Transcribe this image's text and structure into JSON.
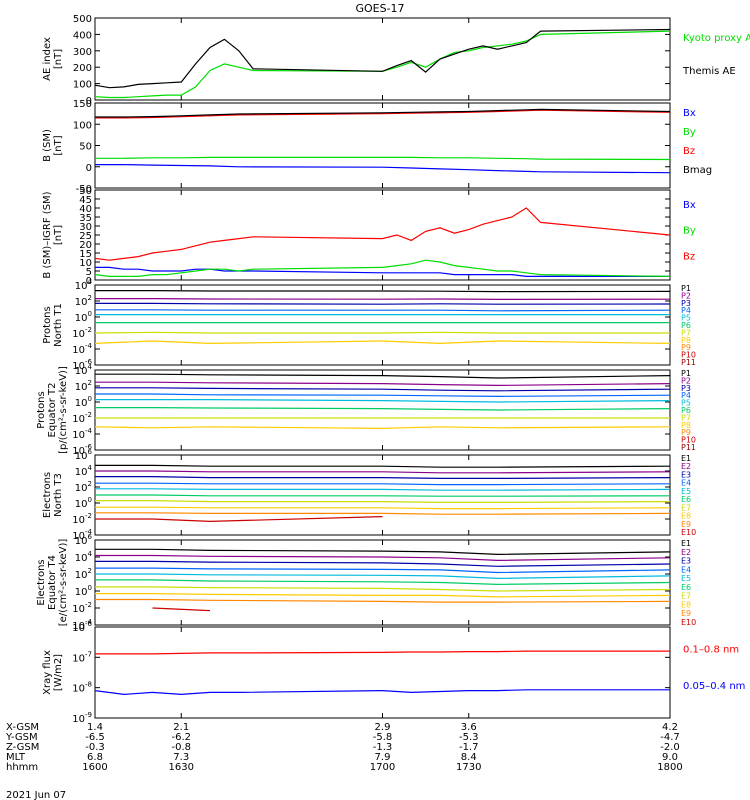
{
  "figure": {
    "title": "GOES-17",
    "date": "2021 Jun 07"
  },
  "x_axis": {
    "domain": [
      1600,
      1800
    ],
    "ticks": [
      1600,
      1630,
      1700,
      1730,
      1800
    ],
    "rows": [
      {
        "label": "X-GSM",
        "values": [
          "1.4",
          "2.1",
          "2.9",
          "3.6",
          "4.2"
        ]
      },
      {
        "label": "Y-GSM",
        "values": [
          "-6.5",
          "-6.2",
          "-5.8",
          "-5.3",
          "-4.7"
        ]
      },
      {
        "label": "Z-GSM",
        "values": [
          "-0.3",
          "-0.8",
          "-1.3",
          "-1.7",
          "-2.0"
        ]
      },
      {
        "label": "MLT",
        "values": [
          "6.8",
          "7.3",
          "7.9",
          "8.4",
          "9.0"
        ]
      },
      {
        "label": "hhmm",
        "values": [
          "1600",
          "1630",
          "1700",
          "1730",
          "1800"
        ]
      }
    ]
  },
  "chart_data": [
    {
      "type": "line",
      "ylabel": [
        "AE index",
        "[nT]"
      ],
      "ylim": [
        0,
        500
      ],
      "yticks": [
        0,
        100,
        200,
        300,
        400,
        500
      ],
      "x": [
        1600,
        1605,
        1610,
        1615,
        1620,
        1625,
        1630,
        1635,
        1640,
        1645,
        1650,
        1655,
        1700,
        1705,
        1710,
        1715,
        1720,
        1725,
        1730,
        1735,
        1740,
        1745,
        1750,
        1755,
        1800
      ],
      "series": [
        {
          "name": "Kyoto proxy AE",
          "color": "#00dd00",
          "values": [
            20,
            15,
            15,
            20,
            25,
            30,
            30,
            80,
            180,
            220,
            200,
            180,
            175,
            200,
            230,
            200,
            250,
            290,
            300,
            320,
            330,
            340,
            360,
            400,
            420
          ]
        },
        {
          "name": "Themis AE",
          "color": "#000000",
          "values": [
            90,
            75,
            80,
            95,
            100,
            105,
            110,
            220,
            320,
            370,
            300,
            190,
            175,
            210,
            240,
            170,
            250,
            280,
            310,
            330,
            310,
            330,
            350,
            420,
            430
          ]
        }
      ]
    },
    {
      "type": "line",
      "ylabel": [
        "B (SM)",
        "[nT]"
      ],
      "ylim": [
        -50,
        150
      ],
      "yticks": [
        -50,
        0,
        50,
        100,
        150
      ],
      "x": [
        1600,
        1610,
        1620,
        1630,
        1640,
        1650,
        1700,
        1710,
        1720,
        1730,
        1740,
        1750,
        1755,
        1800
      ],
      "series": [
        {
          "name": "Bx",
          "color": "#0000ff",
          "values": [
            5,
            5,
            4,
            3,
            2,
            0,
            -1,
            -3,
            -5,
            -7,
            -9,
            -11,
            -12,
            -14
          ]
        },
        {
          "name": "By",
          "color": "#00dd00",
          "values": [
            20,
            20,
            21,
            21,
            22,
            22,
            22,
            22,
            21,
            21,
            20,
            19,
            18,
            17
          ]
        },
        {
          "name": "Bz",
          "color": "#ff0000",
          "values": [
            115,
            115,
            116,
            118,
            120,
            122,
            125,
            126,
            127,
            128,
            130,
            132,
            133,
            128
          ]
        },
        {
          "name": "Bmag",
          "color": "#000000",
          "values": [
            117,
            117,
            118,
            120,
            122,
            124,
            127,
            128,
            129,
            130,
            132,
            134,
            135,
            130
          ]
        }
      ]
    },
    {
      "type": "line",
      "ylabel": [
        "B (SM)–IGRF (SM)",
        "[nT]"
      ],
      "ylim": [
        0,
        50
      ],
      "yticks": [
        0,
        5,
        10,
        15,
        20,
        25,
        30,
        35,
        40,
        45,
        50
      ],
      "x": [
        1600,
        1605,
        1610,
        1615,
        1620,
        1625,
        1630,
        1635,
        1640,
        1645,
        1650,
        1655,
        1700,
        1705,
        1710,
        1715,
        1720,
        1725,
        1730,
        1735,
        1740,
        1745,
        1750,
        1755,
        1800
      ],
      "series": [
        {
          "name": "Bx",
          "color": "#0000ff",
          "values": [
            7,
            7,
            6,
            6,
            5,
            5,
            5,
            6,
            6,
            5,
            5,
            5,
            4,
            4,
            4,
            4,
            4,
            3,
            3,
            3,
            3,
            3,
            2,
            2,
            2
          ]
        },
        {
          "name": "By",
          "color": "#00dd00",
          "values": [
            3,
            2,
            2,
            2,
            3,
            3,
            4,
            5,
            6,
            6,
            5,
            6,
            7,
            8,
            9,
            11,
            10,
            8,
            7,
            6,
            5,
            5,
            4,
            3,
            2
          ]
        },
        {
          "name": "Bz",
          "color": "#ff0000",
          "values": [
            12,
            11,
            12,
            13,
            15,
            16,
            17,
            19,
            21,
            22,
            23,
            24,
            23,
            25,
            22,
            27,
            29,
            26,
            28,
            31,
            33,
            35,
            40,
            32,
            25
          ]
        }
      ]
    },
    {
      "type": "line",
      "ylabel": [
        "Protons",
        "North T1"
      ],
      "yscale": "log",
      "ylim": [
        1e-06,
        10000
      ],
      "yticks": [
        "10^-6",
        "10^-4",
        "10^-2",
        "10^0",
        "10^2",
        "10^4"
      ],
      "x": [
        1600,
        1620,
        1640,
        1700,
        1720,
        1740,
        1800
      ],
      "series": [
        {
          "name": "P1",
          "color": "#000000",
          "values": [
            2000,
            2000,
            1800,
            1800,
            1700,
            1500,
            1600
          ]
        },
        {
          "name": "P2",
          "color": "#8b008b",
          "values": [
            200,
            200,
            180,
            170,
            180,
            160,
            170
          ]
        },
        {
          "name": "P3",
          "color": "#0000aa",
          "values": [
            50,
            50,
            45,
            40,
            45,
            40,
            42
          ]
        },
        {
          "name": "P4",
          "color": "#0066ff",
          "values": [
            8,
            8,
            7,
            7,
            7,
            6,
            7
          ]
        },
        {
          "name": "P5",
          "color": "#00bbdd",
          "values": [
            2,
            2,
            2,
            2,
            2,
            2,
            2
          ]
        },
        {
          "name": "P6",
          "color": "#00cc66",
          "values": [
            0.2,
            0.2,
            0.2,
            0.2,
            0.2,
            0.2,
            0.2
          ]
        },
        {
          "name": "P7",
          "color": "#ccdd00",
          "values": [
            0.01,
            0.012,
            0.01,
            0.01,
            0.012,
            0.01,
            0.01
          ]
        },
        {
          "name": "P8",
          "color": "#ffcc00",
          "values": [
            0.0005,
            0.001,
            0.0005,
            0.001,
            0.0005,
            0.001,
            0.0005
          ]
        },
        {
          "name": "P9",
          "color": "#ff8800",
          "values": [
            null,
            null,
            null,
            0.0001,
            null,
            null,
            0.0001
          ]
        },
        {
          "name": "P10",
          "color": "#cc0000",
          "values": [
            null,
            null,
            null,
            3e-05,
            null,
            null,
            3e-05
          ]
        },
        {
          "name": "P11",
          "color": "#990000",
          "values": [
            null,
            null,
            null,
            null,
            null,
            null,
            null
          ]
        }
      ]
    },
    {
      "type": "line",
      "ylabel": [
        "Protons",
        "Equator T2",
        "[p/(cm²-s-sr-keV)]"
      ],
      "yscale": "log",
      "ylim": [
        1e-06,
        10000
      ],
      "yticks": [
        "10^-6",
        "10^-4",
        "10^-2",
        "10^0",
        "10^2",
        "10^4"
      ],
      "x": [
        1600,
        1620,
        1640,
        1700,
        1720,
        1740,
        1800
      ],
      "series": [
        {
          "name": "P1",
          "color": "#000000",
          "values": [
            3000,
            3000,
            2500,
            2000,
            1500,
            1000,
            2000
          ]
        },
        {
          "name": "P2",
          "color": "#8b008b",
          "values": [
            300,
            300,
            250,
            200,
            150,
            120,
            200
          ]
        },
        {
          "name": "P3",
          "color": "#0000aa",
          "values": [
            60,
            60,
            50,
            40,
            30,
            25,
            40
          ]
        },
        {
          "name": "P4",
          "color": "#0066ff",
          "values": [
            10,
            10,
            8,
            7,
            6,
            5,
            7
          ]
        },
        {
          "name": "P5",
          "color": "#00bbdd",
          "values": [
            2,
            2,
            2,
            1.5,
            1.2,
            1,
            1.5
          ]
        },
        {
          "name": "P6",
          "color": "#00cc66",
          "values": [
            0.2,
            0.2,
            0.18,
            0.15,
            0.12,
            0.1,
            0.15
          ]
        },
        {
          "name": "P7",
          "color": "#ccdd00",
          "values": [
            0.01,
            0.01,
            0.01,
            0.01,
            0.01,
            0.01,
            0.01
          ]
        },
        {
          "name": "P8",
          "color": "#ffcc00",
          "values": [
            0.0008,
            0.0006,
            0.0008,
            0.0005,
            0.0008,
            0.0006,
            0.0008
          ]
        },
        {
          "name": "P9",
          "color": "#ff8800",
          "values": [
            null,
            null,
            null,
            null,
            null,
            null,
            null
          ]
        },
        {
          "name": "P10",
          "color": "#cc0000",
          "values": [
            null,
            null,
            null,
            null,
            null,
            null,
            null
          ]
        },
        {
          "name": "P11",
          "color": "#990000",
          "values": [
            null,
            null,
            null,
            null,
            null,
            null,
            null
          ]
        }
      ]
    },
    {
      "type": "line",
      "ylabel": [
        "Electrons",
        "North T3"
      ],
      "yscale": "log",
      "ylim": [
        0.0001,
        1000000
      ],
      "yticks": [
        "10^-4",
        "10^-2",
        "10^0",
        "10^2",
        "10^4",
        "10^6"
      ],
      "x": [
        1600,
        1620,
        1640,
        1700,
        1720,
        1740,
        1800
      ],
      "series": [
        {
          "name": "E1",
          "color": "#000000",
          "values": [
            50000,
            50000,
            40000,
            40000,
            30000,
            30000,
            40000
          ]
        },
        {
          "name": "E2",
          "color": "#8b008b",
          "values": [
            10000,
            10000,
            8000,
            8000,
            6000,
            6000,
            8000
          ]
        },
        {
          "name": "E3",
          "color": "#0000aa",
          "values": [
            2000,
            2000,
            1500,
            1500,
            1200,
            1200,
            1500
          ]
        },
        {
          "name": "E4",
          "color": "#0066ff",
          "values": [
            300,
            300,
            250,
            250,
            200,
            200,
            250
          ]
        },
        {
          "name": "E5",
          "color": "#00bbdd",
          "values": [
            60,
            60,
            50,
            50,
            40,
            40,
            50
          ]
        },
        {
          "name": "E6",
          "color": "#00cc66",
          "values": [
            10,
            10,
            8,
            8,
            7,
            7,
            8
          ]
        },
        {
          "name": "E7",
          "color": "#ccdd00",
          "values": [
            2,
            2,
            1.5,
            1.5,
            1.2,
            1.2,
            1.5
          ]
        },
        {
          "name": "E8",
          "color": "#ffcc00",
          "values": [
            0.3,
            0.3,
            0.25,
            0.25,
            0.2,
            0.2,
            0.25
          ]
        },
        {
          "name": "E9",
          "color": "#ff8800",
          "values": [
            0.06,
            0.06,
            0.05,
            0.05,
            0.04,
            0.04,
            0.05
          ]
        },
        {
          "name": "E10",
          "color": "#cc0000",
          "values": [
            0.01,
            0.01,
            0.005,
            0.02,
            null,
            null,
            0.01
          ]
        }
      ]
    },
    {
      "type": "line",
      "ylabel": [
        "Electrons",
        "Equator T4",
        "[e/(cm²-s-sr-keV)]"
      ],
      "yscale": "log",
      "ylim": [
        0.0001,
        1000000
      ],
      "yticks": [
        "10^-4",
        "10^-2",
        "10^0",
        "10^2",
        "10^4",
        "10^6"
      ],
      "x": [
        1600,
        1620,
        1640,
        1700,
        1720,
        1740,
        1800
      ],
      "series": [
        {
          "name": "E1",
          "color": "#000000",
          "values": [
            80000,
            80000,
            60000,
            50000,
            40000,
            20000,
            40000
          ]
        },
        {
          "name": "E2",
          "color": "#8b008b",
          "values": [
            15000,
            15000,
            12000,
            10000,
            8000,
            4000,
            8000
          ]
        },
        {
          "name": "E3",
          "color": "#0000aa",
          "values": [
            3000,
            3000,
            2500,
            2000,
            1500,
            800,
            1500
          ]
        },
        {
          "name": "E4",
          "color": "#0066ff",
          "values": [
            500,
            500,
            400,
            350,
            300,
            150,
            300
          ]
        },
        {
          "name": "E5",
          "color": "#00bbdd",
          "values": [
            100,
            100,
            80,
            70,
            60,
            30,
            60
          ]
        },
        {
          "name": "E6",
          "color": "#00cc66",
          "values": [
            20,
            20,
            15,
            12,
            10,
            6,
            10
          ]
        },
        {
          "name": "E7",
          "color": "#ccdd00",
          "values": [
            3,
            3,
            2.5,
            2,
            1.5,
            1,
            1.5
          ]
        },
        {
          "name": "E8",
          "color": "#ffcc00",
          "values": [
            0.5,
            0.5,
            0.4,
            0.3,
            0.3,
            0.2,
            0.3
          ]
        },
        {
          "name": "E9",
          "color": "#ff8800",
          "values": [
            0.1,
            0.1,
            0.08,
            0.06,
            0.05,
            0.05,
            0.06
          ]
        },
        {
          "name": "E10",
          "color": "#cc0000",
          "values": [
            null,
            0.01,
            0.005,
            null,
            null,
            0.03,
            null
          ]
        }
      ]
    },
    {
      "type": "line",
      "ylabel": [
        "Xray flux",
        "[W/m2]"
      ],
      "yscale": "log",
      "ylim": [
        1e-09,
        1e-06
      ],
      "yticks": [
        "10^-9",
        "10^-8",
        "10^-7",
        "10^-6"
      ],
      "x": [
        1600,
        1610,
        1620,
        1630,
        1640,
        1650,
        1700,
        1710,
        1720,
        1730,
        1740,
        1750,
        1800
      ],
      "series": [
        {
          "name": "0.1–0.8 nm",
          "color": "#ff0000",
          "values": [
            1.3e-07,
            1.3e-07,
            1.3e-07,
            1.35e-07,
            1.4e-07,
            1.4e-07,
            1.45e-07,
            1.5e-07,
            1.5e-07,
            1.55e-07,
            1.55e-07,
            1.6e-07,
            1.6e-07
          ]
        },
        {
          "name": "0.05–0.4 nm",
          "color": "#0000ff",
          "values": [
            8e-09,
            6e-09,
            7e-09,
            6e-09,
            7e-09,
            7e-09,
            8e-09,
            7e-09,
            7.5e-09,
            8e-09,
            8e-09,
            8.5e-09,
            8.5e-09
          ]
        }
      ]
    }
  ]
}
